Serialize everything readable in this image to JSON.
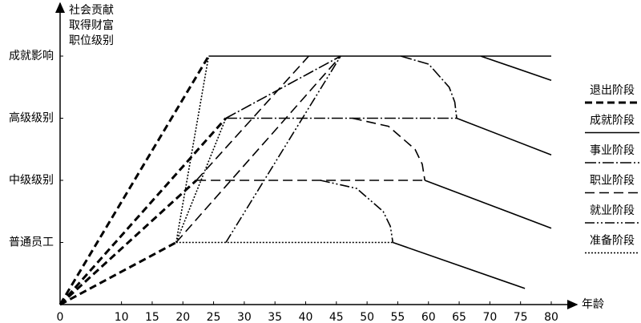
{
  "chart_data": {
    "type": "line",
    "y_label": [
      "社会贡献",
      "取得财富",
      "职位级别"
    ],
    "x_label": "年龄",
    "xlim": [
      0,
      80
    ],
    "xticks": [
      0,
      10,
      15,
      20,
      25,
      30,
      35,
      40,
      45,
      50,
      55,
      60,
      65,
      70,
      75,
      80
    ],
    "ylim": [
      0,
      4.9
    ],
    "yticks": [
      {
        "value": 1,
        "label": "普通员工"
      },
      {
        "value": 2,
        "label": "中级级别"
      },
      {
        "value": 3,
        "label": "高级级别"
      },
      {
        "value": 4,
        "label": "成就影响"
      }
    ],
    "series": [
      {
        "name": "退出阶段",
        "color": "#000000",
        "dash": "9,5",
        "line_width": 3,
        "x": [
          0,
          18.9,
          null,
          0,
          22.2,
          null,
          0,
          27,
          null,
          0,
          24.2
        ],
        "values": [
          0,
          1,
          null,
          0,
          2,
          null,
          0,
          3,
          null,
          0,
          4
        ]
      },
      {
        "name": "成就阶段",
        "color": "#000000",
        "dash": "none",
        "line_width": 1.6,
        "x": [
          24.2,
          80,
          null,
          68.5,
          80,
          null,
          64.6,
          80,
          null,
          59.4,
          80,
          null,
          54.2,
          75.7
        ],
        "values": [
          4,
          4,
          null,
          4,
          3.61,
          null,
          3,
          2.41,
          null,
          2,
          1.23,
          null,
          1,
          0.26
        ]
      },
      {
        "name": "事业阶段",
        "color": "#000000",
        "dash": "14,3,2,3",
        "line_width": 1.6,
        "x": [
          27,
          64.6,
          null,
          55.5,
          60.05,
          63.38,
          64.29,
          64.6,
          null,
          27,
          45.7
        ],
        "values": [
          3,
          3,
          null,
          4,
          3.87,
          3.5,
          3.26,
          3,
          null,
          3,
          4
        ]
      },
      {
        "name": "职业阶段",
        "color": "#000000",
        "dash": "12,6",
        "line_width": 1.6,
        "x": [
          22.2,
          59.4,
          null,
          47.6,
          53.5,
          57.82,
          58.99,
          59.4,
          null,
          22.2,
          40.5,
          null,
          18.9,
          45.7
        ],
        "values": [
          2,
          2,
          null,
          3,
          2.87,
          2.5,
          2.26,
          2,
          null,
          2,
          4,
          null,
          1,
          4
        ]
      },
      {
        "name": "就业阶段",
        "color": "#000000",
        "dash": "12,3,2,3,2,3",
        "line_width": 1.6,
        "x": [
          42.4,
          48.3,
          52.62,
          53.8,
          54.2,
          null,
          27,
          45.7
        ],
        "values": [
          2,
          1.87,
          1.5,
          1.26,
          1,
          null,
          1,
          4
        ]
      },
      {
        "name": "准备阶段",
        "color": "#000000",
        "dash": "2,2",
        "line_width": 1.6,
        "x": [
          18.9,
          54.2,
          null,
          18.9,
          24.2,
          null,
          18.9,
          27
        ],
        "values": [
          1,
          1,
          null,
          1,
          4,
          null,
          1,
          3
        ]
      }
    ]
  }
}
